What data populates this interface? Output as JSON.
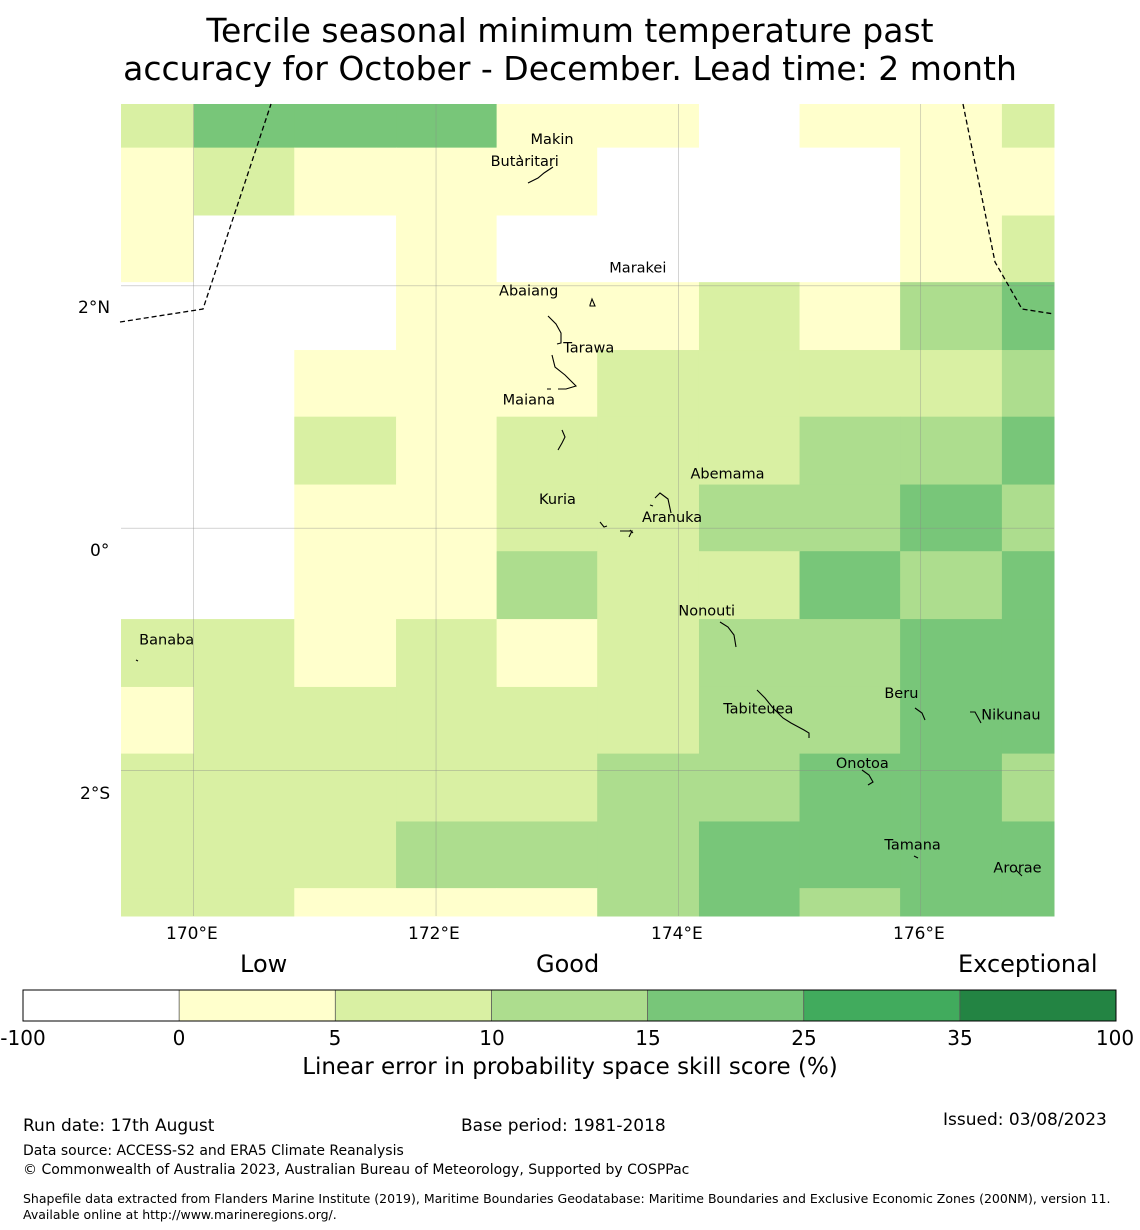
{
  "title": {
    "line1": "Tercile seasonal minimum temperature past",
    "line2": "accuracy for October - December. Lead time: 2 month"
  },
  "map": {
    "lon_range": [
      169.4,
      177.1
    ],
    "lat_range": [
      -3.2,
      3.5
    ],
    "x_ticks": [
      {
        "lon": 170,
        "label": "170°E"
      },
      {
        "lon": 172,
        "label": "172°E"
      },
      {
        "lon": 174,
        "label": "174°E"
      },
      {
        "lon": 176,
        "label": "176°E"
      }
    ],
    "y_ticks": [
      {
        "lat": 2,
        "label": "2°N"
      },
      {
        "lat": 0,
        "label": "0°"
      },
      {
        "lat": -2,
        "label": "2°S"
      }
    ],
    "grid_lon_edges": [
      169.4,
      170.0,
      170.83,
      171.67,
      172.5,
      173.33,
      174.17,
      175.0,
      175.83,
      176.67,
      177.1
    ],
    "grid_lat_edges": [
      3.5,
      3.14,
      2.58,
      2.03,
      1.47,
      0.92,
      0.36,
      -0.19,
      -0.75,
      -1.31,
      -1.86,
      -2.42,
      -2.97,
      -3.2
    ],
    "skill_classes": [
      [
        2,
        4,
        4,
        4,
        1,
        1,
        0,
        1,
        1,
        2
      ],
      [
        1,
        2,
        1,
        1,
        1,
        0,
        0,
        0,
        1,
        1
      ],
      [
        1,
        0,
        0,
        1,
        0,
        0,
        0,
        0,
        1,
        2
      ],
      [
        0,
        0,
        0,
        1,
        1,
        1,
        2,
        1,
        3,
        4
      ],
      [
        0,
        0,
        1,
        1,
        1,
        2,
        2,
        2,
        2,
        3
      ],
      [
        0,
        0,
        2,
        1,
        2,
        2,
        2,
        3,
        3,
        4
      ],
      [
        0,
        0,
        1,
        1,
        2,
        2,
        3,
        3,
        4,
        3
      ],
      [
        0,
        0,
        1,
        1,
        3,
        2,
        2,
        4,
        3,
        4
      ],
      [
        2,
        2,
        1,
        2,
        1,
        2,
        3,
        3,
        4,
        4
      ],
      [
        1,
        2,
        2,
        2,
        2,
        2,
        3,
        3,
        4,
        4
      ],
      [
        2,
        2,
        2,
        2,
        2,
        3,
        3,
        4,
        4,
        3
      ],
      [
        2,
        2,
        2,
        3,
        3,
        3,
        4,
        4,
        4,
        4
      ],
      [
        2,
        2,
        1,
        1,
        1,
        3,
        4,
        3,
        4,
        4
      ]
    ],
    "places": [
      {
        "name": "Makin",
        "lon": 172.78,
        "lat": 3.17
      },
      {
        "name": "Butaritari",
        "lon": 172.45,
        "lat": 2.99
      },
      {
        "name": "Marakei",
        "lon": 173.43,
        "lat": 2.11
      },
      {
        "name": "Abaiang",
        "lon": 172.52,
        "lat": 1.92
      },
      {
        "name": "Tarawa",
        "lon": 173.05,
        "lat": 1.45
      },
      {
        "name": "Maiana",
        "lon": 172.55,
        "lat": 1.02
      },
      {
        "name": "Abemama",
        "lon": 174.1,
        "lat": 0.41
      },
      {
        "name": "Kuria",
        "lon": 172.85,
        "lat": 0.2
      },
      {
        "name": "Aranuka",
        "lon": 173.7,
        "lat": 0.05
      },
      {
        "name": "Nonouti",
        "lon": 174.0,
        "lat": -0.72
      },
      {
        "name": "Banaba",
        "lon": 169.55,
        "lat": -0.96
      },
      {
        "name": "Beru",
        "lon": 175.7,
        "lat": -1.4
      },
      {
        "name": "Nikunau",
        "lon": 176.5,
        "lat": -1.58
      },
      {
        "name": "Tabiteuea",
        "lon": 174.37,
        "lat": -1.53
      },
      {
        "name": "Onotoa",
        "lon": 175.3,
        "lat": -1.98
      },
      {
        "name": "Tamana",
        "lon": 175.7,
        "lat": -2.65
      },
      {
        "name": "Arorae",
        "lon": 176.6,
        "lat": -2.84
      }
    ]
  },
  "legend": {
    "categories": [
      {
        "label": "Low"
      },
      {
        "label": "Good"
      },
      {
        "label": "Exceptional"
      }
    ],
    "bins": [
      {
        "color": "#ffffff"
      },
      {
        "color": "#ffffcc"
      },
      {
        "color": "#d9f0a3"
      },
      {
        "color": "#addd8e"
      },
      {
        "color": "#78c679"
      },
      {
        "color": "#41ab5d"
      },
      {
        "color": "#238443"
      }
    ],
    "ticks": [
      "-100",
      "0",
      "5",
      "10",
      "15",
      "25",
      "35",
      "100"
    ],
    "title": "Linear error in probability space skill score (%)"
  },
  "footer": {
    "run_date": "Run date: 17th August",
    "base_period": "Base period: 1981-2018",
    "issued": "Issued: 03/08/2023",
    "data_source": "Data source: ACCESS-S2 and ERA5 Climate Reanalysis",
    "copyright": "© Commonwealth of Australia 2023, Australian Bureau of Meteorology, Supported by COSPPac",
    "shapefile": "Shapefile data extracted from Flanders Marine Institute (2019), Maritime Boundaries Geodatabase: Maritime Boundaries and Exclusive Economic Zones (200NM), version 11. Available online at http://www.marineregions.org/."
  }
}
